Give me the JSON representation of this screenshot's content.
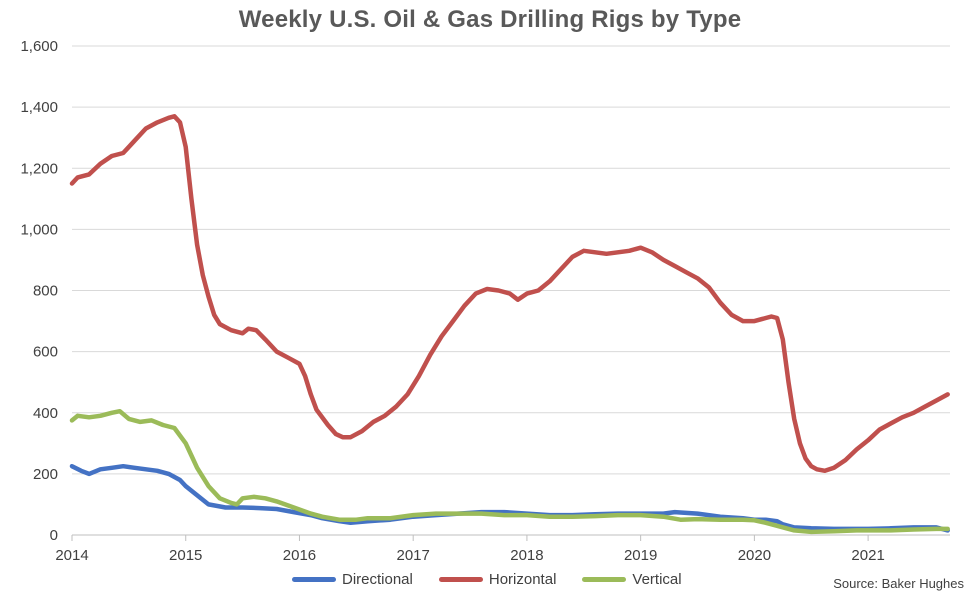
{
  "chart_data": {
    "type": "line",
    "title": "Weekly U.S. Oil & Gas Drilling Rigs by Type",
    "source": "Source: Baker Hughes",
    "xlim": [
      2014.0,
      2021.72
    ],
    "ylim": [
      0,
      1600
    ],
    "x_ticks": [
      2014,
      2015,
      2016,
      2017,
      2018,
      2019,
      2020,
      2021
    ],
    "x_tick_labels": [
      "2014",
      "2015",
      "2016",
      "2017",
      "2018",
      "2019",
      "2020",
      "2021"
    ],
    "y_ticks": [
      0,
      200,
      400,
      600,
      800,
      1000,
      1200,
      1400,
      1600
    ],
    "y_tick_labels": [
      "0",
      "200",
      "400",
      "600",
      "800",
      "1,000",
      "1,200",
      "1,400",
      "1,600"
    ],
    "grid": true,
    "legend_position": "bottom",
    "series": [
      {
        "name": "Directional",
        "color": "#4472C4",
        "points": [
          [
            2014.0,
            225
          ],
          [
            2014.08,
            210
          ],
          [
            2014.15,
            200
          ],
          [
            2014.25,
            215
          ],
          [
            2014.35,
            220
          ],
          [
            2014.45,
            225
          ],
          [
            2014.55,
            220
          ],
          [
            2014.65,
            215
          ],
          [
            2014.75,
            210
          ],
          [
            2014.85,
            200
          ],
          [
            2014.95,
            180
          ],
          [
            2015.0,
            160
          ],
          [
            2015.1,
            130
          ],
          [
            2015.2,
            100
          ],
          [
            2015.35,
            90
          ],
          [
            2015.5,
            90
          ],
          [
            2015.65,
            88
          ],
          [
            2015.8,
            85
          ],
          [
            2015.95,
            75
          ],
          [
            2016.1,
            65
          ],
          [
            2016.2,
            55
          ],
          [
            2016.35,
            45
          ],
          [
            2016.45,
            40
          ],
          [
            2016.6,
            45
          ],
          [
            2016.8,
            50
          ],
          [
            2017.0,
            60
          ],
          [
            2017.2,
            65
          ],
          [
            2017.4,
            70
          ],
          [
            2017.6,
            75
          ],
          [
            2017.8,
            75
          ],
          [
            2018.0,
            70
          ],
          [
            2018.2,
            65
          ],
          [
            2018.4,
            65
          ],
          [
            2018.6,
            68
          ],
          [
            2018.8,
            70
          ],
          [
            2019.0,
            70
          ],
          [
            2019.2,
            70
          ],
          [
            2019.3,
            75
          ],
          [
            2019.5,
            70
          ],
          [
            2019.7,
            60
          ],
          [
            2019.9,
            55
          ],
          [
            2020.0,
            50
          ],
          [
            2020.1,
            50
          ],
          [
            2020.2,
            45
          ],
          [
            2020.25,
            35
          ],
          [
            2020.35,
            25
          ],
          [
            2020.5,
            22
          ],
          [
            2020.7,
            20
          ],
          [
            2020.9,
            20
          ],
          [
            2021.0,
            20
          ],
          [
            2021.2,
            22
          ],
          [
            2021.4,
            25
          ],
          [
            2021.6,
            25
          ],
          [
            2021.7,
            15
          ]
        ]
      },
      {
        "name": "Horizontal",
        "color": "#C0504D",
        "points": [
          [
            2014.0,
            1150
          ],
          [
            2014.05,
            1170
          ],
          [
            2014.15,
            1180
          ],
          [
            2014.25,
            1215
          ],
          [
            2014.35,
            1240
          ],
          [
            2014.45,
            1250
          ],
          [
            2014.55,
            1290
          ],
          [
            2014.65,
            1330
          ],
          [
            2014.75,
            1350
          ],
          [
            2014.85,
            1365
          ],
          [
            2014.9,
            1370
          ],
          [
            2014.95,
            1350
          ],
          [
            2015.0,
            1270
          ],
          [
            2015.05,
            1100
          ],
          [
            2015.1,
            950
          ],
          [
            2015.15,
            850
          ],
          [
            2015.2,
            780
          ],
          [
            2015.25,
            720
          ],
          [
            2015.3,
            690
          ],
          [
            2015.4,
            670
          ],
          [
            2015.5,
            660
          ],
          [
            2015.55,
            675
          ],
          [
            2015.62,
            670
          ],
          [
            2015.7,
            640
          ],
          [
            2015.8,
            600
          ],
          [
            2015.9,
            580
          ],
          [
            2016.0,
            560
          ],
          [
            2016.05,
            520
          ],
          [
            2016.1,
            460
          ],
          [
            2016.15,
            410
          ],
          [
            2016.25,
            360
          ],
          [
            2016.32,
            330
          ],
          [
            2016.38,
            320
          ],
          [
            2016.45,
            320
          ],
          [
            2016.55,
            340
          ],
          [
            2016.65,
            370
          ],
          [
            2016.75,
            390
          ],
          [
            2016.85,
            420
          ],
          [
            2016.95,
            460
          ],
          [
            2017.05,
            520
          ],
          [
            2017.15,
            590
          ],
          [
            2017.25,
            650
          ],
          [
            2017.35,
            700
          ],
          [
            2017.45,
            750
          ],
          [
            2017.55,
            790
          ],
          [
            2017.65,
            805
          ],
          [
            2017.75,
            800
          ],
          [
            2017.85,
            790
          ],
          [
            2017.92,
            770
          ],
          [
            2018.0,
            790
          ],
          [
            2018.1,
            800
          ],
          [
            2018.2,
            830
          ],
          [
            2018.3,
            870
          ],
          [
            2018.4,
            910
          ],
          [
            2018.5,
            930
          ],
          [
            2018.6,
            925
          ],
          [
            2018.7,
            920
          ],
          [
            2018.8,
            925
          ],
          [
            2018.9,
            930
          ],
          [
            2019.0,
            940
          ],
          [
            2019.1,
            925
          ],
          [
            2019.2,
            900
          ],
          [
            2019.3,
            880
          ],
          [
            2019.4,
            860
          ],
          [
            2019.5,
            840
          ],
          [
            2019.6,
            810
          ],
          [
            2019.7,
            760
          ],
          [
            2019.8,
            720
          ],
          [
            2019.9,
            700
          ],
          [
            2020.0,
            700
          ],
          [
            2020.1,
            710
          ],
          [
            2020.15,
            715
          ],
          [
            2020.2,
            710
          ],
          [
            2020.25,
            640
          ],
          [
            2020.3,
            500
          ],
          [
            2020.35,
            380
          ],
          [
            2020.4,
            300
          ],
          [
            2020.45,
            250
          ],
          [
            2020.5,
            225
          ],
          [
            2020.55,
            215
          ],
          [
            2020.62,
            210
          ],
          [
            2020.7,
            220
          ],
          [
            2020.8,
            245
          ],
          [
            2020.9,
            280
          ],
          [
            2021.0,
            310
          ],
          [
            2021.1,
            345
          ],
          [
            2021.2,
            365
          ],
          [
            2021.3,
            385
          ],
          [
            2021.4,
            400
          ],
          [
            2021.5,
            420
          ],
          [
            2021.6,
            440
          ],
          [
            2021.7,
            460
          ]
        ]
      },
      {
        "name": "Vertical",
        "color": "#9BBB59",
        "points": [
          [
            2014.0,
            375
          ],
          [
            2014.05,
            390
          ],
          [
            2014.15,
            385
          ],
          [
            2014.25,
            390
          ],
          [
            2014.35,
            400
          ],
          [
            2014.42,
            405
          ],
          [
            2014.5,
            380
          ],
          [
            2014.6,
            370
          ],
          [
            2014.7,
            375
          ],
          [
            2014.8,
            360
          ],
          [
            2014.9,
            350
          ],
          [
            2015.0,
            300
          ],
          [
            2015.05,
            260
          ],
          [
            2015.1,
            220
          ],
          [
            2015.2,
            160
          ],
          [
            2015.3,
            120
          ],
          [
            2015.4,
            105
          ],
          [
            2015.45,
            100
          ],
          [
            2015.5,
            120
          ],
          [
            2015.6,
            125
          ],
          [
            2015.7,
            120
          ],
          [
            2015.8,
            110
          ],
          [
            2015.95,
            90
          ],
          [
            2016.1,
            70
          ],
          [
            2016.2,
            60
          ],
          [
            2016.35,
            50
          ],
          [
            2016.5,
            50
          ],
          [
            2016.6,
            55
          ],
          [
            2016.8,
            55
          ],
          [
            2017.0,
            65
          ],
          [
            2017.2,
            70
          ],
          [
            2017.4,
            70
          ],
          [
            2017.6,
            70
          ],
          [
            2017.8,
            65
          ],
          [
            2018.0,
            65
          ],
          [
            2018.2,
            60
          ],
          [
            2018.4,
            60
          ],
          [
            2018.6,
            62
          ],
          [
            2018.8,
            65
          ],
          [
            2019.0,
            65
          ],
          [
            2019.2,
            60
          ],
          [
            2019.35,
            50
          ],
          [
            2019.5,
            52
          ],
          [
            2019.7,
            50
          ],
          [
            2019.9,
            50
          ],
          [
            2020.0,
            48
          ],
          [
            2020.1,
            40
          ],
          [
            2020.2,
            30
          ],
          [
            2020.35,
            15
          ],
          [
            2020.5,
            10
          ],
          [
            2020.7,
            12
          ],
          [
            2020.9,
            15
          ],
          [
            2021.0,
            15
          ],
          [
            2021.2,
            15
          ],
          [
            2021.4,
            18
          ],
          [
            2021.6,
            20
          ],
          [
            2021.7,
            20
          ]
        ]
      }
    ]
  }
}
